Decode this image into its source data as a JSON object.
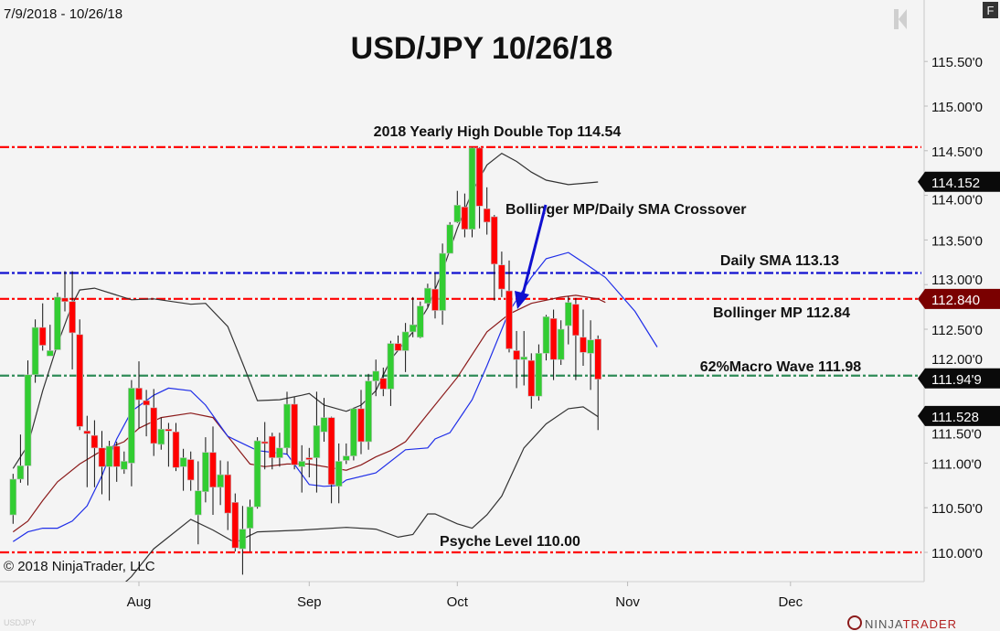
{
  "header": {
    "date_range": "7/9/2018 - 10/26/18",
    "f_button": "F",
    "copyright": "© 2018 NinjaTrader, LLC",
    "instrument_watermark": "USDJPY",
    "logo_text": "NINJATRADER",
    "logo_first": "NINJA",
    "logo_second": "TRADER"
  },
  "colors": {
    "background": "#f4f4f4",
    "up_candle": "#32cd32",
    "down_candle": "#ff0000",
    "bollinger_band": "#333333",
    "bollinger_mp": "#8b1a1a",
    "daily_sma": "#1f2ee8",
    "resistance_line": "#ff0000",
    "sma_level_line": "#1010d0",
    "macro_wave_line": "#2e8b57",
    "arrow": "#1010d0"
  },
  "chart_data": {
    "type": "candlestick",
    "title": "USD/JPY 10/26/18",
    "x_start_date": "2018-07-09",
    "x_tick_labels": [
      "Aug",
      "Sep",
      "Oct",
      "Nov",
      "Dec"
    ],
    "x_tick_dates": [
      "08-01",
      "09-03",
      "10-01",
      "11-01",
      "12-03"
    ],
    "y_range": [
      109.7,
      115.7
    ],
    "y_tick_labels": [
      "115.50'0",
      "115.00'0",
      "114.50'0",
      "114.00'0",
      "113.50'0",
      "113.00'0",
      "112.50'0",
      "112.00'0",
      "111.50'0",
      "111.00'0",
      "110.50'0",
      "110.00'0"
    ],
    "y_tick_values": [
      115.5,
      115.0,
      114.5,
      114.0,
      113.5,
      113.0,
      112.5,
      112.0,
      111.5,
      111.0,
      110.5,
      110.0
    ],
    "hidden_tick_labels": [
      "112.00'0",
      "111.50'0"
    ],
    "candle_fields": [
      "date",
      "open",
      "high",
      "low",
      "close"
    ],
    "candles": [
      [
        "07-09",
        110.42,
        110.88,
        110.32,
        110.82
      ],
      [
        "07-10",
        110.82,
        111.32,
        110.78,
        110.97
      ],
      [
        "07-11",
        110.97,
        112.15,
        110.75,
        111.99
      ],
      [
        "07-12",
        111.99,
        112.61,
        111.9,
        112.52
      ],
      [
        "07-13",
        112.52,
        112.79,
        112.26,
        112.32
      ],
      [
        "07-16",
        112.2,
        112.55,
        112.2,
        112.26
      ],
      [
        "07-17",
        112.27,
        112.91,
        112.27,
        112.86
      ],
      [
        "07-18",
        112.85,
        113.15,
        112.7,
        112.81
      ],
      [
        "07-19",
        112.81,
        113.15,
        112.05,
        112.46
      ],
      [
        "07-20",
        112.44,
        112.61,
        111.37,
        111.41
      ],
      [
        "07-23",
        111.36,
        111.53,
        110.73,
        111.33
      ],
      [
        "07-24",
        111.31,
        111.48,
        110.73,
        111.17
      ],
      [
        "07-25",
        111.17,
        111.36,
        110.65,
        110.96
      ],
      [
        "07-26",
        110.96,
        111.25,
        110.58,
        111.19
      ],
      [
        "07-27",
        111.19,
        111.24,
        110.79,
        110.96
      ],
      [
        "07-30",
        110.93,
        111.13,
        110.88,
        111.02
      ],
      [
        "07-31",
        111.0,
        111.93,
        110.74,
        111.84
      ],
      [
        "08-01",
        111.84,
        112.14,
        111.39,
        111.71
      ],
      [
        "08-02",
        111.7,
        111.82,
        111.3,
        111.65
      ],
      [
        "08-03",
        111.62,
        111.83,
        111.08,
        111.22
      ],
      [
        "08-06",
        111.21,
        111.51,
        111.15,
        111.38
      ],
      [
        "08-07",
        111.38,
        111.45,
        110.96,
        111.37
      ],
      [
        "08-08",
        111.35,
        111.45,
        110.91,
        110.95
      ],
      [
        "08-09",
        110.96,
        111.16,
        110.69,
        111.06
      ],
      [
        "08-10",
        111.04,
        111.13,
        110.69,
        110.81
      ],
      [
        "08-13",
        110.42,
        111.02,
        110.09,
        110.69
      ],
      [
        "08-14",
        110.68,
        111.29,
        110.56,
        111.12
      ],
      [
        "08-15",
        111.12,
        111.41,
        110.42,
        110.73
      ],
      [
        "08-16",
        110.73,
        111.03,
        110.53,
        110.87
      ],
      [
        "08-17",
        110.87,
        111.02,
        110.25,
        110.44
      ],
      [
        "08-20",
        110.56,
        110.66,
        110.01,
        110.05
      ],
      [
        "08-21",
        110.04,
        110.52,
        109.75,
        110.26
      ],
      [
        "08-22",
        110.27,
        110.59,
        110.01,
        110.51
      ],
      [
        "08-23",
        110.51,
        111.29,
        110.49,
        111.25
      ],
      [
        "08-24",
        111.24,
        111.46,
        110.93,
        111.22
      ],
      [
        "08-27",
        111.3,
        111.34,
        110.93,
        111.06
      ],
      [
        "08-28",
        111.06,
        111.34,
        110.96,
        111.17
      ],
      [
        "08-29",
        111.17,
        111.8,
        111.1,
        111.66
      ],
      [
        "08-30",
        111.66,
        111.74,
        110.93,
        110.98
      ],
      [
        "08-31",
        110.96,
        111.2,
        110.67,
        111.02
      ],
      [
        "09-03",
        111.06,
        111.17,
        110.84,
        111.04
      ],
      [
        "09-04",
        111.06,
        111.8,
        110.67,
        111.42
      ],
      [
        "09-05",
        111.35,
        111.73,
        111.24,
        111.51
      ],
      [
        "09-06",
        111.51,
        111.52,
        110.55,
        110.76
      ],
      [
        "09-07",
        110.74,
        111.22,
        110.55,
        111.02
      ],
      [
        "09-10",
        111.03,
        111.22,
        110.99,
        111.08
      ],
      [
        "09-11",
        111.08,
        111.62,
        111.03,
        111.61
      ],
      [
        "09-12",
        111.61,
        111.82,
        111.1,
        111.24
      ],
      [
        "09-13",
        111.24,
        112.0,
        111.15,
        111.92
      ],
      [
        "09-14",
        111.92,
        112.16,
        111.75,
        112.03
      ],
      [
        "09-17",
        111.95,
        112.07,
        111.75,
        111.83
      ],
      [
        "09-18",
        111.83,
        112.37,
        111.64,
        112.34
      ],
      [
        "09-19",
        112.34,
        112.43,
        112.26,
        112.26
      ],
      [
        "09-20",
        112.26,
        112.57,
        112.02,
        112.47
      ],
      [
        "09-21",
        112.47,
        112.86,
        112.41,
        112.55
      ],
      [
        "09-24",
        112.41,
        112.81,
        112.4,
        112.76
      ],
      [
        "09-25",
        112.79,
        113.01,
        112.75,
        112.96
      ],
      [
        "09-26",
        112.95,
        113.13,
        112.62,
        112.71
      ],
      [
        "09-27",
        112.71,
        113.46,
        112.55,
        113.35
      ],
      [
        "09-28",
        113.35,
        113.7,
        113.35,
        113.67
      ],
      [
        "10-01",
        113.7,
        114.05,
        113.69,
        113.89
      ],
      [
        "10-02",
        113.87,
        114.02,
        113.53,
        113.62
      ],
      [
        "10-03",
        113.62,
        114.54,
        113.53,
        114.53
      ],
      [
        "10-04",
        114.53,
        114.54,
        113.63,
        113.88
      ],
      [
        "10-05",
        113.85,
        114.09,
        113.56,
        113.7
      ],
      [
        "10-08",
        113.76,
        113.78,
        112.82,
        113.23
      ],
      [
        "10-09",
        113.22,
        113.37,
        112.86,
        112.95
      ],
      [
        "10-10",
        112.93,
        113.27,
        112.24,
        112.28
      ],
      [
        "10-11",
        112.26,
        112.48,
        111.84,
        112.16
      ],
      [
        "10-12",
        112.16,
        112.48,
        111.87,
        112.19
      ],
      [
        "10-15",
        112.15,
        112.23,
        111.61,
        111.75
      ],
      [
        "10-16",
        111.75,
        112.33,
        111.7,
        112.23
      ],
      [
        "10-17",
        112.23,
        112.66,
        112.15,
        112.64
      ],
      [
        "10-18",
        112.62,
        112.72,
        111.93,
        112.16
      ],
      [
        "10-19",
        112.16,
        112.6,
        112.1,
        112.5
      ],
      [
        "10-22",
        112.54,
        112.87,
        112.33,
        112.8
      ],
      [
        "10-23",
        112.78,
        112.85,
        111.93,
        112.43
      ],
      [
        "10-24",
        112.41,
        112.72,
        112.09,
        112.24
      ],
      [
        "10-25",
        112.23,
        112.6,
        111.82,
        112.38
      ],
      [
        "10-26",
        112.39,
        112.43,
        111.37,
        111.94
      ]
    ],
    "indicators": [
      {
        "key": "upper_band",
        "color": "#333333",
        "points": [
          [
            "07-09",
            110.94
          ],
          [
            "07-11",
            111.2
          ],
          [
            "07-13",
            111.81
          ],
          [
            "07-17",
            112.33
          ],
          [
            "07-19",
            112.78
          ],
          [
            "07-20",
            112.94
          ],
          [
            "07-24",
            112.96
          ],
          [
            "07-31",
            112.83
          ],
          [
            "08-03",
            112.84
          ],
          [
            "08-10",
            112.78
          ],
          [
            "08-14",
            112.79
          ],
          [
            "08-17",
            112.53
          ],
          [
            "08-21",
            112.12
          ],
          [
            "08-23",
            111.7
          ],
          [
            "08-28",
            111.71
          ],
          [
            "08-31",
            111.76
          ],
          [
            "09-03",
            111.78
          ],
          [
            "09-05",
            111.65
          ],
          [
            "09-10",
            111.58
          ],
          [
            "09-12",
            111.65
          ],
          [
            "09-14",
            111.81
          ],
          [
            "09-18",
            112.16
          ],
          [
            "09-21",
            112.47
          ],
          [
            "09-25",
            112.74
          ],
          [
            "09-27",
            113.15
          ],
          [
            "10-01",
            113.63
          ],
          [
            "10-03",
            114.04
          ],
          [
            "10-05",
            114.34
          ],
          [
            "10-09",
            114.47
          ],
          [
            "10-11",
            114.38
          ],
          [
            "10-15",
            114.26
          ],
          [
            "10-17",
            114.17
          ],
          [
            "10-22",
            114.12
          ],
          [
            "10-26",
            114.15
          ]
        ]
      },
      {
        "key": "lower_band",
        "color": "#333333",
        "points": [
          [
            "07-26",
            109.5
          ],
          [
            "07-31",
            109.73
          ],
          [
            "08-03",
            110.04
          ],
          [
            "08-10",
            110.37
          ],
          [
            "08-15",
            110.25
          ],
          [
            "08-20",
            110.11
          ],
          [
            "08-23",
            110.23
          ],
          [
            "08-28",
            110.24
          ],
          [
            "08-31",
            110.25
          ],
          [
            "09-10",
            110.28
          ],
          [
            "09-14",
            110.26
          ],
          [
            "09-19",
            110.17
          ],
          [
            "09-21",
            110.2
          ],
          [
            "09-25",
            110.43
          ],
          [
            "09-26",
            110.43
          ],
          [
            "10-01",
            110.32
          ],
          [
            "10-03",
            110.27
          ],
          [
            "10-05",
            110.42
          ],
          [
            "10-09",
            110.63
          ],
          [
            "10-12",
            111.17
          ],
          [
            "10-17",
            111.44
          ],
          [
            "10-22",
            111.61
          ],
          [
            "10-24",
            111.63
          ],
          [
            "10-26",
            111.52
          ]
        ]
      },
      {
        "key": "bollinger_mp",
        "color": "#8b1a1a",
        "points": [
          [
            "07-09",
            110.23
          ],
          [
            "07-11",
            110.35
          ],
          [
            "07-13",
            110.58
          ],
          [
            "07-17",
            110.79
          ],
          [
            "07-20",
            110.99
          ],
          [
            "07-25",
            111.14
          ],
          [
            "07-30",
            111.24
          ],
          [
            "08-01",
            111.39
          ],
          [
            "08-06",
            111.51
          ],
          [
            "08-10",
            111.56
          ],
          [
            "08-15",
            111.51
          ],
          [
            "08-17",
            111.3
          ],
          [
            "08-22",
            110.99
          ],
          [
            "08-24",
            110.96
          ],
          [
            "08-29",
            110.99
          ],
          [
            "09-03",
            110.99
          ],
          [
            "09-10",
            110.92
          ],
          [
            "09-12",
            110.98
          ],
          [
            "09-14",
            111.07
          ],
          [
            "09-18",
            111.14
          ],
          [
            "09-20",
            111.24
          ],
          [
            "09-25",
            111.55
          ],
          [
            "10-01",
            111.96
          ],
          [
            "10-05",
            112.47
          ],
          [
            "10-10",
            112.67
          ],
          [
            "10-15",
            112.79
          ],
          [
            "10-19",
            112.86
          ],
          [
            "10-23",
            112.88
          ],
          [
            "10-26",
            112.84
          ],
          [
            "10-29",
            112.8
          ]
        ]
      },
      {
        "key": "daily_sma",
        "color": "#1f2ee8",
        "points": [
          [
            "07-09",
            110.12
          ],
          [
            "07-11",
            110.23
          ],
          [
            "07-13",
            110.27
          ],
          [
            "07-17",
            110.27
          ],
          [
            "07-19",
            110.35
          ],
          [
            "07-23",
            110.52
          ],
          [
            "07-25",
            110.86
          ],
          [
            "07-27",
            111.27
          ],
          [
            "07-31",
            111.58
          ],
          [
            "08-03",
            111.76
          ],
          [
            "08-07",
            111.84
          ],
          [
            "08-10",
            111.81
          ],
          [
            "08-14",
            111.65
          ],
          [
            "08-17",
            111.3
          ],
          [
            "08-21",
            111.22
          ],
          [
            "08-23",
            111.14
          ],
          [
            "08-29",
            111.1
          ],
          [
            "09-03",
            110.76
          ],
          [
            "09-05",
            110.74
          ],
          [
            "09-07",
            110.75
          ],
          [
            "09-10",
            110.81
          ],
          [
            "09-14",
            110.89
          ],
          [
            "09-20",
            111.15
          ],
          [
            "09-25",
            111.17
          ],
          [
            "09-26",
            111.27
          ],
          [
            "09-28",
            111.34
          ],
          [
            "10-03",
            111.71
          ],
          [
            "10-05",
            112.09
          ],
          [
            "10-10",
            112.7
          ],
          [
            "10-15",
            113.08
          ],
          [
            "10-17",
            113.29
          ],
          [
            "10-22",
            113.36
          ],
          [
            "10-24",
            113.25
          ],
          [
            "10-29",
            113.08
          ],
          [
            "11-02",
            112.7
          ],
          [
            "11-07",
            112.3
          ]
        ]
      }
    ],
    "levels": [
      {
        "key": "yearly_high",
        "value": 114.54,
        "color": "#ff0000",
        "label": "2018 Yearly High Double Top 114.54"
      },
      {
        "key": "daily_sma",
        "value": 113.13,
        "color": "#1010d0",
        "label": "Daily SMA 113.13"
      },
      {
        "key": "bollinger_mp",
        "value": 112.84,
        "color": "#ff0000",
        "label": "Bollinger MP 112.84"
      },
      {
        "key": "macro_wave",
        "value": 111.98,
        "color": "#2e8b57",
        "label": "62%Macro Wave 111.98"
      },
      {
        "key": "psyche_level",
        "value": 110.0,
        "color": "#ff0000",
        "label": "Psyche Level 110.00"
      }
    ],
    "annotations": {
      "crossover": "Bollinger MP/Daily SMA Crossover"
    },
    "price_flags": [
      {
        "key": "upper_band",
        "value": 114.152,
        "text": "114.152",
        "color": "#0a0a0a"
      },
      {
        "key": "bollinger_mp",
        "value": 112.84,
        "text": "112.840",
        "color": "#7a0000"
      },
      {
        "key": "last_price",
        "value": 111.949,
        "text": "111.94'9",
        "color": "#0a0a0a"
      },
      {
        "key": "lower_band",
        "value": 111.528,
        "text": "111.528",
        "color": "#0a0a0a"
      }
    ]
  }
}
